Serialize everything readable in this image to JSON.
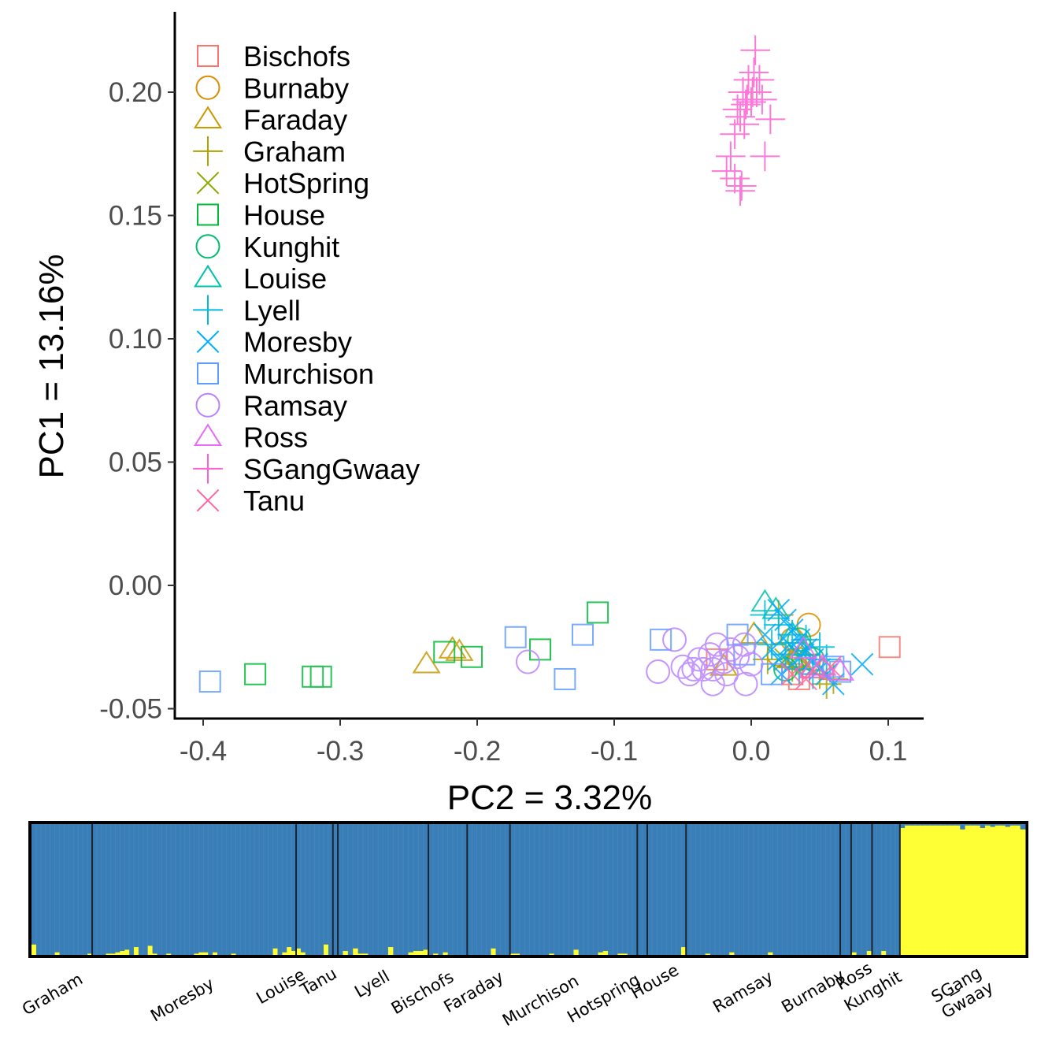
{
  "chart_data": [
    {
      "type": "scatter",
      "title": "",
      "xlabel": "PC2 = 3.32%",
      "ylabel": "PC1 = 13.16%",
      "xlim": [
        -0.42,
        0.125
      ],
      "ylim": [
        -0.055,
        0.225
      ],
      "xticks": [
        -0.4,
        -0.3,
        -0.2,
        -0.1,
        0.0,
        0.1
      ],
      "xtick_labels": [
        "-0.4",
        "-0.3",
        "-0.2",
        "-0.1",
        "0.0",
        "0.1"
      ],
      "yticks": [
        -0.05,
        0.0,
        0.05,
        0.1,
        0.15,
        0.2
      ],
      "ytick_labels": [
        "-0.05",
        "0.00",
        "0.05",
        "0.10",
        "0.15",
        "0.20"
      ],
      "grid": false,
      "legend_position": "top-left",
      "series": [
        {
          "name": "Bischofs",
          "shape": "square",
          "color": "#F8766D",
          "points": [
            [
              0.101,
              -0.025
            ],
            [
              -0.025,
              -0.03
            ],
            [
              0.035,
              -0.038
            ],
            [
              0.03,
              -0.036
            ]
          ]
        },
        {
          "name": "Burnaby",
          "shape": "circle",
          "color": "#DB8E00",
          "points": [
            [
              0.042,
              -0.016
            ],
            [
              0.03,
              -0.022
            ],
            [
              0.02,
              -0.028
            ],
            [
              0.035,
              -0.03
            ]
          ]
        },
        {
          "name": "Faraday",
          "shape": "triangle",
          "color": "#C79A00",
          "points": [
            [
              -0.237,
              -0.032
            ],
            [
              -0.218,
              -0.026
            ],
            [
              -0.213,
              -0.027
            ],
            [
              -0.02,
              -0.033
            ],
            [
              0.002,
              -0.02
            ],
            [
              0.03,
              -0.03
            ],
            [
              0.045,
              -0.034
            ]
          ]
        },
        {
          "name": "Graham",
          "shape": "plus",
          "color": "#AEA200",
          "points": [
            [
              0.012,
              -0.03
            ],
            [
              0.03,
              -0.033
            ],
            [
              0.05,
              -0.036
            ],
            [
              0.06,
              -0.038
            ],
            [
              0.02,
              -0.012
            ],
            [
              0.055,
              -0.04
            ],
            [
              0.04,
              -0.028
            ]
          ]
        },
        {
          "name": "HotSpring",
          "shape": "cross",
          "color": "#8AAB00",
          "points": [
            [
              0.025,
              -0.03
            ],
            [
              0.04,
              -0.032
            ],
            [
              0.035,
              -0.028
            ]
          ]
        },
        {
          "name": "House",
          "shape": "square",
          "color": "#00BA38",
          "points": [
            [
              -0.362,
              -0.036
            ],
            [
              -0.32,
              -0.037
            ],
            [
              -0.314,
              -0.037
            ],
            [
              -0.224,
              -0.027
            ],
            [
              -0.204,
              -0.029
            ],
            [
              -0.154,
              -0.026
            ],
            [
              -0.112,
              -0.011
            ]
          ]
        },
        {
          "name": "Kunghit",
          "shape": "circle",
          "color": "#00BE70",
          "points": [
            [
              0.035,
              -0.022
            ],
            [
              0.045,
              -0.03
            ],
            [
              0.025,
              -0.034
            ]
          ]
        },
        {
          "name": "Louise",
          "shape": "triangle",
          "color": "#00C1AB",
          "points": [
            [
              0.01,
              -0.007
            ],
            [
              0.018,
              -0.01
            ],
            [
              0.03,
              -0.02
            ],
            [
              0.04,
              -0.025
            ]
          ]
        },
        {
          "name": "Lyell",
          "shape": "plus",
          "color": "#00BBDA",
          "points": [
            [
              0.01,
              -0.012
            ],
            [
              0.02,
              -0.016
            ],
            [
              0.03,
              -0.02
            ],
            [
              0.04,
              -0.022
            ],
            [
              0.05,
              -0.025
            ],
            [
              0.055,
              -0.03
            ],
            [
              0.025,
              -0.028
            ],
            [
              0.035,
              -0.034
            ],
            [
              0.045,
              -0.036
            ],
            [
              0.015,
              -0.024
            ]
          ]
        },
        {
          "name": "Moresby",
          "shape": "cross",
          "color": "#00ACFC",
          "points": [
            [
              0.081,
              -0.032
            ],
            [
              0.06,
              -0.04
            ],
            [
              0.02,
              -0.01
            ],
            [
              0.025,
              -0.014
            ],
            [
              0.03,
              -0.018
            ],
            [
              0.035,
              -0.022
            ],
            [
              0.04,
              -0.026
            ],
            [
              0.045,
              -0.03
            ],
            [
              0.05,
              -0.034
            ],
            [
              0.055,
              -0.036
            ],
            [
              0.015,
              -0.026
            ],
            [
              0.02,
              -0.03
            ],
            [
              0.03,
              -0.032
            ],
            [
              0.01,
              -0.02
            ],
            [
              0.028,
              -0.024
            ],
            [
              0.038,
              -0.028
            ],
            [
              0.048,
              -0.032
            ],
            [
              0.022,
              -0.036
            ]
          ]
        },
        {
          "name": "Murchison",
          "shape": "square",
          "color": "#619CFF",
          "points": [
            [
              -0.395,
              -0.039
            ],
            [
              -0.172,
              -0.021
            ],
            [
              -0.136,
              -0.038
            ],
            [
              -0.123,
              -0.02
            ],
            [
              -0.066,
              -0.022
            ],
            [
              -0.01,
              -0.02
            ],
            [
              -0.005,
              -0.028
            ],
            [
              0.06,
              -0.033
            ],
            [
              0.065,
              -0.035
            ],
            [
              0.015,
              -0.036
            ]
          ]
        },
        {
          "name": "Ramsay",
          "shape": "circle",
          "color": "#B983FF",
          "points": [
            [
              -0.163,
              -0.031
            ],
            [
              -0.056,
              -0.022
            ],
            [
              -0.068,
              -0.035
            ],
            [
              -0.05,
              -0.033
            ],
            [
              -0.045,
              -0.036
            ],
            [
              -0.038,
              -0.03
            ],
            [
              -0.03,
              -0.028
            ],
            [
              -0.025,
              -0.024
            ],
            [
              -0.028,
              -0.034
            ],
            [
              -0.02,
              -0.031
            ],
            [
              -0.015,
              -0.026
            ],
            [
              -0.01,
              -0.029
            ],
            [
              -0.005,
              -0.024
            ],
            [
              -0.028,
              -0.04
            ],
            [
              -0.004,
              -0.04
            ],
            [
              -0.035,
              -0.034
            ],
            [
              -0.018,
              -0.036
            ],
            [
              -0.042,
              -0.034
            ],
            [
              0.0,
              -0.032
            ]
          ]
        },
        {
          "name": "Ross",
          "shape": "triangle",
          "color": "#E76BF3",
          "points": [
            [
              0.038,
              -0.026
            ],
            [
              0.052,
              -0.033
            ],
            [
              0.065,
              -0.035
            ],
            [
              0.045,
              -0.034
            ]
          ]
        },
        {
          "name": "SGangGwaay",
          "shape": "plus",
          "color": "#FD61D1",
          "points": [
            [
              0.003,
              0.217
            ],
            [
              0.002,
              0.208
            ],
            [
              -0.002,
              0.205
            ],
            [
              0.006,
              0.205
            ],
            [
              0.001,
              0.2
            ],
            [
              -0.006,
              0.2
            ],
            [
              0.004,
              0.2
            ],
            [
              0.008,
              0.197
            ],
            [
              -0.003,
              0.197
            ],
            [
              0.0,
              0.196
            ],
            [
              -0.004,
              0.195
            ],
            [
              -0.01,
              0.193
            ],
            [
              -0.008,
              0.19
            ],
            [
              -0.005,
              0.187
            ],
            [
              0.014,
              0.189
            ],
            [
              -0.012,
              0.183
            ],
            [
              -0.015,
              0.174
            ],
            [
              0.01,
              0.174
            ],
            [
              -0.018,
              0.168
            ],
            [
              -0.012,
              0.165
            ],
            [
              -0.007,
              0.162
            ],
            [
              -0.008,
              0.16
            ]
          ]
        },
        {
          "name": "Tanu",
          "shape": "cross",
          "color": "#FF67A4",
          "points": [
            [
              0.03,
              -0.036
            ],
            [
              0.045,
              -0.034
            ],
            [
              0.058,
              -0.033
            ],
            [
              0.04,
              -0.038
            ]
          ]
        }
      ]
    },
    {
      "type": "bar",
      "subtype": "stacked-admixture",
      "title": "",
      "xlabel": "",
      "ylabel": "",
      "ylim": [
        0,
        1
      ],
      "cluster_colors": {
        "cluster1": "#3A7EB8",
        "cluster2": "#FFFF33"
      },
      "groups": [
        {
          "name": "Graham",
          "label": "Graham",
          "share": 0.061,
          "cluster2_props": [
            0.08,
            0.0,
            0.0,
            0.0,
            0.0,
            0.02,
            0.0,
            0.0,
            0.0,
            0.0,
            0.0,
            0.0,
            0.01
          ]
        },
        {
          "name": "Moresby",
          "label": "Moresby",
          "share": 0.205,
          "cluster2_props": [
            0.0,
            0.0,
            0.0,
            0.01,
            0.01,
            0.02,
            0.03,
            0.04,
            0.0,
            0.06,
            0.0,
            0.0,
            0.07,
            0.01,
            0.0,
            0.0,
            0.01,
            0.0,
            0.0,
            0.0,
            0.0,
            0.0,
            0.01,
            0.02,
            0.02,
            0.0,
            0.02,
            0.0,
            0.0,
            0.0,
            0.01,
            0.0,
            0.0,
            0.0,
            0.0,
            0.0,
            0.0,
            0.0,
            0.0,
            0.05,
            0.0,
            0.02,
            0.06,
            0.03
          ]
        },
        {
          "name": "Louise",
          "label": "Louise",
          "share": 0.037,
          "cluster2_props": [
            0.05,
            0.02,
            0.0,
            0.0,
            0.0,
            0.0,
            0.08,
            0.0
          ]
        },
        {
          "name": "Tanu",
          "label": "Tanu",
          "share": 0.005,
          "cluster2_props": [
            0.0
          ]
        },
        {
          "name": "Lyell",
          "label": "Lyell",
          "share": 0.091,
          "cluster2_props": [
            0.0,
            0.03,
            0.0,
            0.05,
            0.01,
            0.01,
            0.0,
            0.0,
            0.0,
            0.0,
            0.06,
            0.0,
            0.0,
            0.0,
            0.02,
            0.03,
            0.03,
            0.04
          ]
        },
        {
          "name": "Bischofs",
          "label": "Bischofs",
          "share": 0.039,
          "cluster2_props": [
            0.0,
            0.01,
            0.0,
            0.02,
            0.0,
            0.0,
            0.0,
            0.0
          ]
        },
        {
          "name": "Faraday",
          "label": "Faraday",
          "share": 0.043,
          "cluster2_props": [
            0.0,
            0.0,
            0.0,
            0.0,
            0.0,
            0.05,
            0.0,
            0.0,
            0.0
          ]
        },
        {
          "name": "Murchison",
          "label": "Murchison",
          "share": 0.128,
          "cluster2_props": [
            0.01,
            0.01,
            0.0,
            0.0,
            0.0,
            0.0,
            0.0,
            0.0,
            0.01,
            0.0,
            0.0,
            0.0,
            0.0,
            0.04,
            0.0,
            0.0,
            0.0,
            0.0,
            0.02,
            0.03,
            0.0,
            0.0,
            0.01,
            0.01,
            0.0,
            0.0
          ]
        },
        {
          "name": "Hotspring",
          "label": "Hotspring",
          "share": 0.01,
          "cluster2_props": [
            0.0,
            0.0
          ]
        },
        {
          "name": "House",
          "label": "House",
          "share": 0.039,
          "cluster2_props": [
            0.0,
            0.0,
            0.0,
            0.0,
            0.0,
            0.0,
            0.0,
            0.06
          ]
        },
        {
          "name": "Ramsay",
          "label": "Ramsay",
          "share": 0.155,
          "cluster2_props": [
            0.0,
            0.0,
            0.0,
            0.0,
            0.01,
            0.0,
            0.0,
            0.0,
            0.0,
            0.02,
            0.0,
            0.0,
            0.0,
            0.0,
            0.0,
            0.0,
            0.0,
            0.02,
            0.0,
            0.0,
            0.0,
            0.0,
            0.0,
            0.0,
            0.0,
            0.0,
            0.0,
            0.0,
            0.0,
            0.0,
            0.0,
            0.0
          ]
        },
        {
          "name": "Burnaby",
          "label": "Burnaby",
          "share": 0.011,
          "cluster2_props": [
            0.0,
            0.0
          ]
        },
        {
          "name": "Ross",
          "label": "Ross",
          "share": 0.021,
          "cluster2_props": [
            0.02,
            0.0,
            0.0,
            0.03
          ]
        },
        {
          "name": "Kunghit",
          "label": "Kunghit",
          "share": 0.028,
          "cluster2_props": [
            0.0,
            0.0,
            0.03,
            0.0,
            0.0,
            0.0
          ]
        },
        {
          "name": "SGangGwaay",
          "label": "SGang Gwaay",
          "share": 0.126,
          "cluster2_props": [
            0.97,
            0.99,
            0.99,
            0.99,
            0.99,
            0.99,
            0.99,
            0.99,
            0.99,
            0.99,
            0.99,
            0.99,
            0.96,
            0.99,
            0.99,
            0.99,
            0.97,
            0.99,
            0.98,
            0.99,
            0.99,
            0.98,
            0.99,
            0.99,
            0.96
          ]
        }
      ],
      "population_labels": [
        "Graham",
        "Moresby",
        "Louise",
        "Tanu",
        "Lyell",
        "Bischofs",
        "Faraday",
        "Murchison",
        "Hotspring",
        "House",
        "Ramsay",
        "Burnaby",
        "Ross",
        "Kunghit",
        "SGang",
        "Gwaay"
      ]
    }
  ]
}
